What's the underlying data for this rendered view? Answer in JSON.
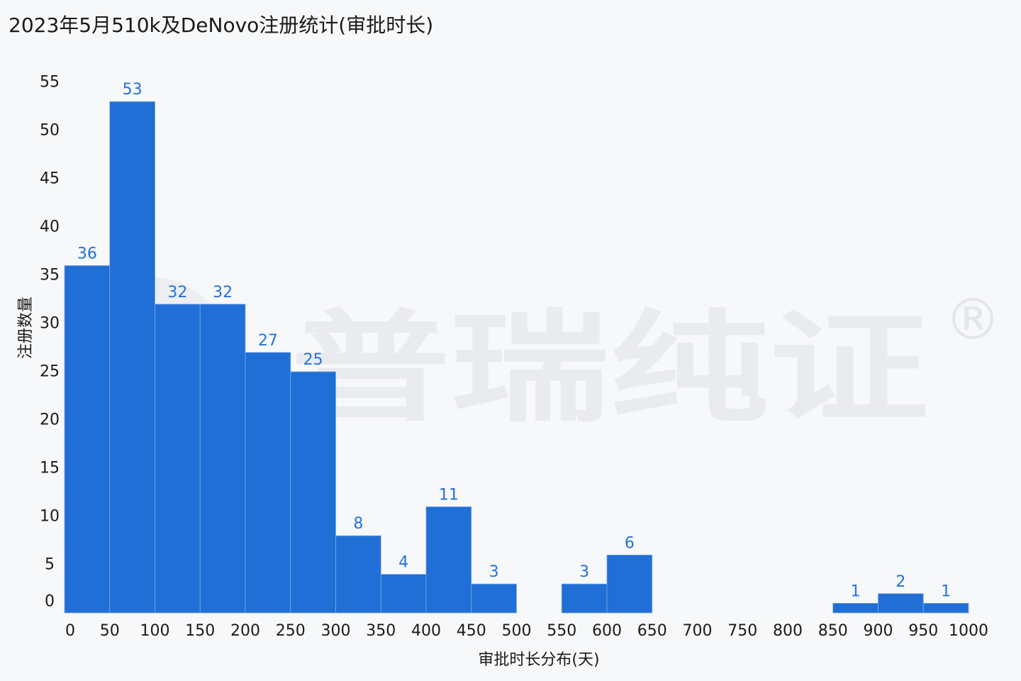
{
  "chart_data": {
    "type": "bar",
    "title": "2023年5月510k及DeNovo注册统计(审批时长)",
    "xlabel": "审批时长分布(天)",
    "ylabel": "注册数量",
    "bin_edges": [
      0,
      50,
      100,
      150,
      200,
      250,
      300,
      350,
      400,
      450,
      500,
      550,
      600,
      650,
      700,
      750,
      800,
      850,
      900,
      950,
      1000
    ],
    "values": [
      36,
      53,
      32,
      32,
      27,
      25,
      8,
      4,
      11,
      3,
      0,
      3,
      6,
      0,
      0,
      0,
      0,
      1,
      2,
      1
    ],
    "ylim": [
      0,
      55
    ],
    "yticks": [
      0,
      5,
      10,
      15,
      20,
      25,
      30,
      35,
      40,
      45,
      50,
      55
    ],
    "xticks": [
      0,
      50,
      100,
      150,
      200,
      250,
      300,
      350,
      400,
      450,
      500,
      550,
      600,
      650,
      700,
      750,
      800,
      850,
      900,
      950,
      1000
    ],
    "bar_color": "#1f6fd6",
    "label_color": "#2472d9",
    "grid": false,
    "legend": "none"
  },
  "watermark": {
    "text": "普瑞纯证",
    "symbol": "®"
  }
}
